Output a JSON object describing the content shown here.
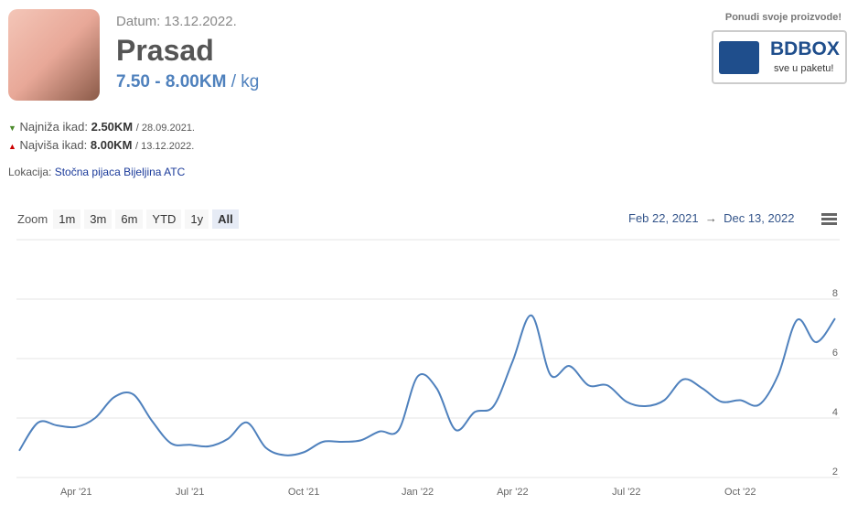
{
  "header": {
    "date": "Datum: 13.12.2022.",
    "title": "Prasad",
    "price": "7.50 - 8.00KM",
    "unit": "/ kg"
  },
  "stats": {
    "low": {
      "label": "Najniža ikad:",
      "value": "2.50KM",
      "date": "/ 28.09.2021."
    },
    "high": {
      "label": "Najviša ikad:",
      "value": "8.00KM",
      "date": "/ 13.12.2022."
    }
  },
  "location": {
    "label": "Lokacija:",
    "link": "Stočna pijaca Bijeljina ATC"
  },
  "zoom": {
    "label": "Zoom",
    "buttons": [
      "1m",
      "3m",
      "6m",
      "YTD",
      "1y",
      "All"
    ]
  },
  "range": {
    "from": "Feb 22, 2021",
    "arrow": "→",
    "to": "Dec 13, 2022"
  },
  "ad": {
    "caption": "Ponudi svoje proizvode!",
    "brand": "BDBOX",
    "slogan": "sve u paketu!"
  },
  "chart_data": {
    "type": "line",
    "color": "#4f81bd",
    "categories": [
      null,
      null,
      null,
      "Apr '21",
      null,
      null,
      null,
      null,
      null,
      "Jul '21",
      null,
      null,
      null,
      null,
      null,
      "Oct '21",
      null,
      null,
      null,
      null,
      null,
      "Jan '22",
      null,
      null,
      null,
      null,
      "Apr '22",
      null,
      null,
      null,
      null,
      null,
      "Jul '22",
      null,
      null,
      null,
      null,
      null,
      "Oct '22",
      null,
      null,
      null,
      null,
      null
    ],
    "values": [
      2.9,
      3.85,
      3.75,
      3.7,
      4.0,
      4.7,
      4.8,
      3.9,
      3.15,
      3.1,
      3.05,
      3.3,
      3.85,
      3.0,
      2.75,
      2.85,
      3.2,
      3.2,
      3.25,
      3.55,
      3.6,
      5.4,
      5.0,
      3.6,
      4.2,
      4.4,
      5.9,
      7.45,
      5.45,
      5.75,
      5.1,
      5.1,
      4.55,
      4.4,
      4.6,
      5.3,
      5.0,
      4.55,
      4.6,
      4.45,
      5.45,
      7.3,
      6.55,
      7.35
    ],
    "ylim": [
      2,
      10
    ],
    "yticks": [
      2,
      4,
      6,
      8
    ],
    "grid": true
  }
}
